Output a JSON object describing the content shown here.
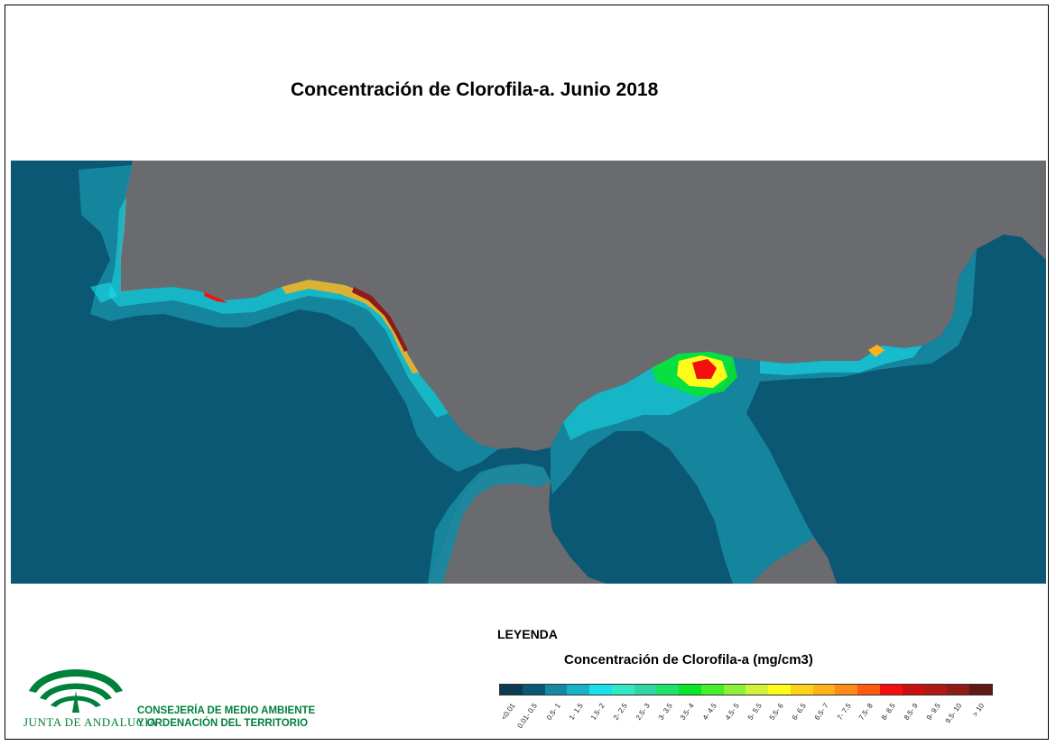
{
  "title": "Concentración de Clorofila-a. Junio 2018",
  "legend": {
    "heading": "LEYENDA",
    "subtitle": "Concentración de Clorofila-a (mg/cm3)",
    "classes": [
      {
        "label": "<0.01",
        "color": "#0b3a52"
      },
      {
        "label": "0.01- 0.5",
        "color": "#0a5874"
      },
      {
        "label": "0.5- 1",
        "color": "#168aa2"
      },
      {
        "label": "1- 1.5",
        "color": "#18b2c8"
      },
      {
        "label": "1.5- 2",
        "color": "#19e0ea"
      },
      {
        "label": "2- 2.5",
        "color": "#33e8c7"
      },
      {
        "label": "2.5- 3",
        "color": "#2fd6a4"
      },
      {
        "label": "3- 3.5",
        "color": "#1ee06b"
      },
      {
        "label": "3.5- 4",
        "color": "#06e628"
      },
      {
        "label": "4- 4.5",
        "color": "#47ee2c"
      },
      {
        "label": "4.5- 5",
        "color": "#8ff03a"
      },
      {
        "label": "5- 5.5",
        "color": "#d0f23a"
      },
      {
        "label": "5.5- 6",
        "color": "#fffc1c"
      },
      {
        "label": "6- 6.5",
        "color": "#ffd21a"
      },
      {
        "label": "6.5- 7",
        "color": "#ffb21a"
      },
      {
        "label": "7- 7.5",
        "color": "#ff8a1a"
      },
      {
        "label": "7.5- 8",
        "color": "#ff5a14"
      },
      {
        "label": "8- 8.5",
        "color": "#f40f0f"
      },
      {
        "label": "8.5- 9",
        "color": "#cc1010"
      },
      {
        "label": "9- 9.5",
        "color": "#b01818"
      },
      {
        "label": "9.5- 10",
        "color": "#8e1a1a"
      },
      {
        "label": "> 10",
        "color": "#5e1818"
      }
    ]
  },
  "map": {
    "sea_color": "#0a5874",
    "land_color": "#6a6b6f"
  },
  "logo": {
    "org_name": "JUNTA DE ANDALUCIA",
    "dept_line1": "CONSEJERÍA DE MEDIO AMBIENTE",
    "dept_line2": "Y ORDENACIÓN DEL TERRITORIO",
    "brand_color": "#00813b"
  }
}
